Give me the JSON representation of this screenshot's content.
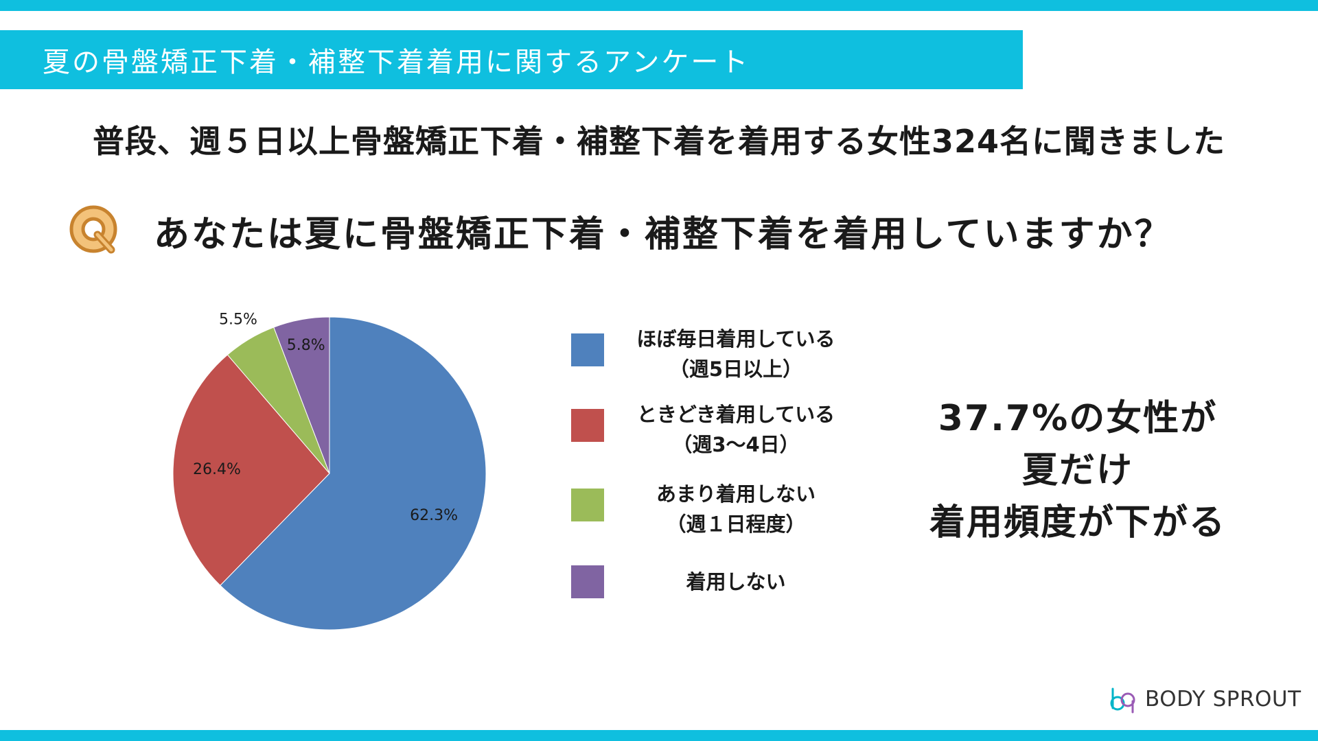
{
  "header": {
    "title": "夏の骨盤矯正下着・補整下着着用に関するアンケート"
  },
  "subtitle": "普段、週５日以上骨盤矯正下着・補整下着を着用する女性324名に聞きました",
  "question": {
    "icon": "q-icon",
    "text": "あなたは夏に骨盤矯正下着・補整下着を着用していますか？"
  },
  "colors": {
    "accent": "#0fbfdf",
    "series": [
      "#4f81bd",
      "#c0504d",
      "#9bbb59",
      "#8064a2"
    ]
  },
  "chart_data": {
    "type": "pie",
    "categories": [
      "ほぼ毎日着用している（週5日以上）",
      "ときどき着用している（週3〜4日）",
      "あまり着用しない（週１日程度）",
      "着用しない"
    ],
    "values": [
      62.3,
      26.4,
      5.5,
      5.8
    ],
    "data_labels": [
      "62.3%",
      "26.4%",
      "5.5%",
      "5.8%"
    ],
    "legend_position": "right"
  },
  "legend": [
    {
      "lines": [
        "ほぼ毎日着用している",
        "（週5日以上）"
      ]
    },
    {
      "lines": [
        "ときどき着用している",
        "（週3〜4日）"
      ]
    },
    {
      "lines": [
        "あまり着用しない",
        "（週１日程度）"
      ]
    },
    {
      "lines": [
        "着用しない"
      ]
    }
  ],
  "conclusion": {
    "lines": [
      "37.7%の女性が",
      "夏だけ",
      "着用頻度が下がる"
    ]
  },
  "brand": {
    "name": "BODY SPROUT",
    "icon": "body-sprout-logo-icon"
  }
}
